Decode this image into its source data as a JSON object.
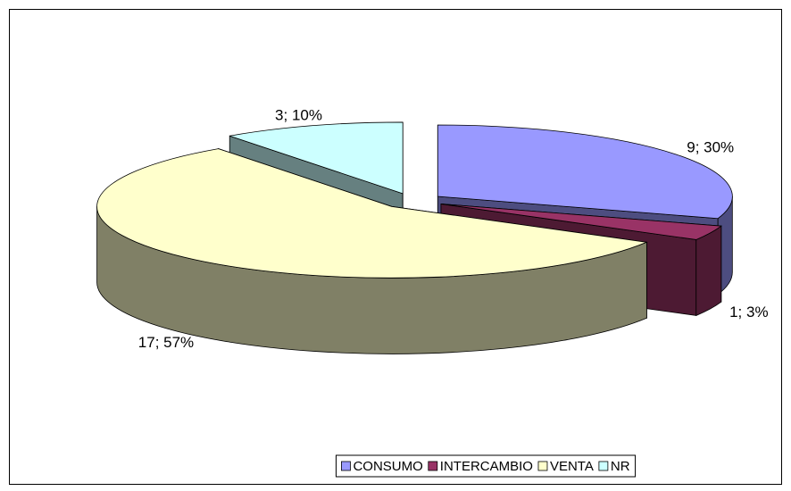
{
  "chart_data": {
    "type": "pie",
    "three_d": true,
    "exploded": true,
    "categories": [
      "CONSUMO",
      "INTERCAMBIO",
      "VENTA",
      "NR"
    ],
    "values": [
      9,
      1,
      17,
      3
    ],
    "value_labels": [
      "9; 30%",
      "1; 3%",
      "17; 57%",
      "3; 10%"
    ],
    "colors": [
      "#9999ff",
      "#993366",
      "#ffffcc",
      "#ccffff"
    ],
    "legend": "bottom"
  }
}
